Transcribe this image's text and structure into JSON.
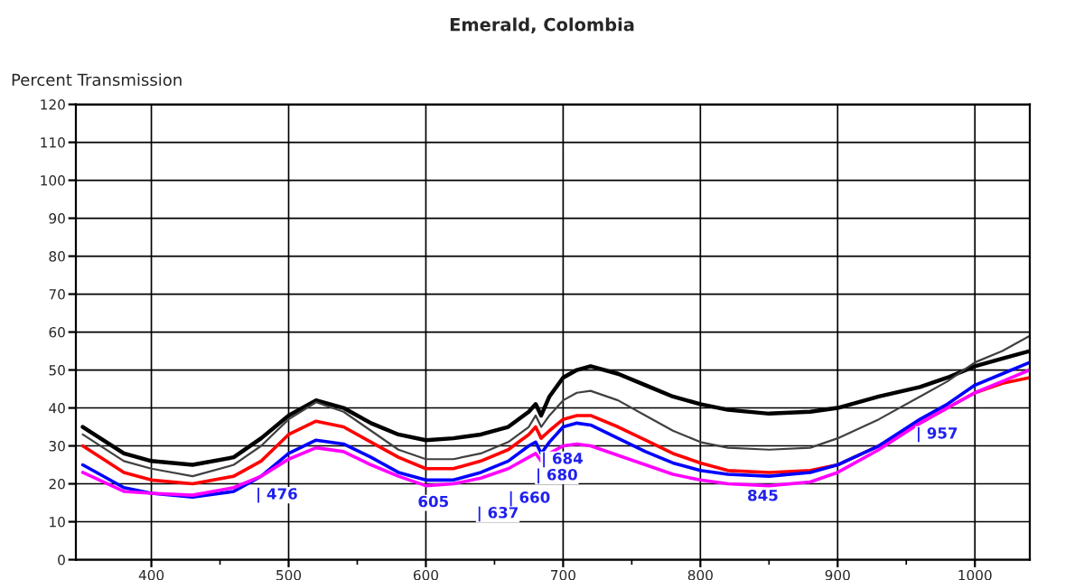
{
  "chart_data": {
    "type": "line",
    "title": "Emerald, Colombia",
    "ylabel": "Percent Transmission",
    "x": [
      350,
      380,
      400,
      430,
      460,
      480,
      500,
      520,
      540,
      560,
      580,
      600,
      620,
      640,
      660,
      675,
      680,
      684,
      690,
      700,
      710,
      720,
      740,
      760,
      780,
      800,
      820,
      850,
      880,
      900,
      930,
      960,
      980,
      1000,
      1020,
      1040
    ],
    "series": [
      {
        "color": "#000000",
        "values": [
          35,
          28,
          26,
          25,
          27,
          32,
          38,
          42,
          40,
          36,
          33,
          31.5,
          32,
          33,
          35,
          39,
          41,
          38,
          43,
          48,
          50,
          51,
          49,
          46,
          43,
          41,
          39.5,
          38.5,
          39,
          40,
          43,
          45.5,
          48,
          51,
          53,
          55
        ]
      },
      {
        "color": "#404040",
        "values": [
          33,
          26,
          24,
          22,
          25,
          30,
          37,
          41.5,
          39,
          34,
          29,
          26.5,
          26.5,
          28,
          31,
          35,
          38,
          35,
          38,
          42,
          44,
          44.5,
          42,
          38,
          34,
          31,
          29.5,
          29,
          29.5,
          32,
          37,
          43,
          47,
          52,
          55,
          59
        ]
      },
      {
        "color": "#ff0000",
        "values": [
          30,
          23,
          21,
          20,
          22,
          26,
          33,
          36.5,
          35,
          31,
          27,
          24,
          24,
          26,
          29,
          33,
          35,
          32,
          34,
          37,
          38,
          38,
          35,
          31.5,
          28,
          25.5,
          23.5,
          23,
          23.5,
          25,
          30,
          36,
          40,
          44,
          46.5,
          48
        ]
      },
      {
        "color": "#0000ff",
        "values": [
          25,
          19,
          17.5,
          16.5,
          18,
          22,
          28,
          31.5,
          30.5,
          27,
          23,
          21,
          21,
          23,
          26,
          30,
          31,
          28,
          31,
          35,
          36,
          35.5,
          32,
          28.5,
          25.5,
          23.5,
          22.5,
          22,
          23,
          25,
          30,
          37,
          41,
          46,
          49,
          52
        ]
      },
      {
        "color": "#ff00ff",
        "values": [
          23,
          18,
          17.5,
          17,
          19,
          22,
          26.5,
          29.5,
          28.5,
          25,
          22,
          19.5,
          20,
          21.5,
          24,
          27,
          28,
          26,
          28,
          30,
          30.5,
          30,
          27.5,
          25,
          22.5,
          21,
          20,
          19.5,
          20.5,
          23,
          29,
          36,
          40,
          44,
          47,
          50
        ]
      }
    ],
    "xlim": [
      345,
      1040
    ],
    "ylim": [
      0,
      120
    ],
    "xticks": [
      400,
      {
        "value": 450,
        "label": null
      },
      500,
      {
        "value": 550,
        "label": null
      },
      600,
      {
        "value": 650,
        "label": null
      },
      700,
      {
        "value": 750,
        "label": null
      },
      800,
      {
        "value": 850,
        "label": null
      },
      900,
      {
        "value": 950,
        "label": null
      },
      1000
    ],
    "yticks": [
      0,
      10,
      20,
      30,
      40,
      50,
      60,
      70,
      80,
      90,
      100,
      110,
      120
    ],
    "grid": true,
    "legend": false,
    "annotations": [
      {
        "text": "| 476",
        "x": 476,
        "y": 21.5
      },
      {
        "text": "605",
        "x": 605,
        "y": 19.5
      },
      {
        "text": "| 637",
        "x": 637,
        "y": 21.3
      },
      {
        "text": "| 660",
        "x": 660,
        "y": 24
      },
      {
        "text": "| 680",
        "x": 680,
        "y": 28
      },
      {
        "text": "| 684",
        "x": 684,
        "y": 26
      },
      {
        "text": "845",
        "x": 845,
        "y": 19.6
      },
      {
        "text": "| 957",
        "x": 957,
        "y": 35.3
      }
    ]
  }
}
